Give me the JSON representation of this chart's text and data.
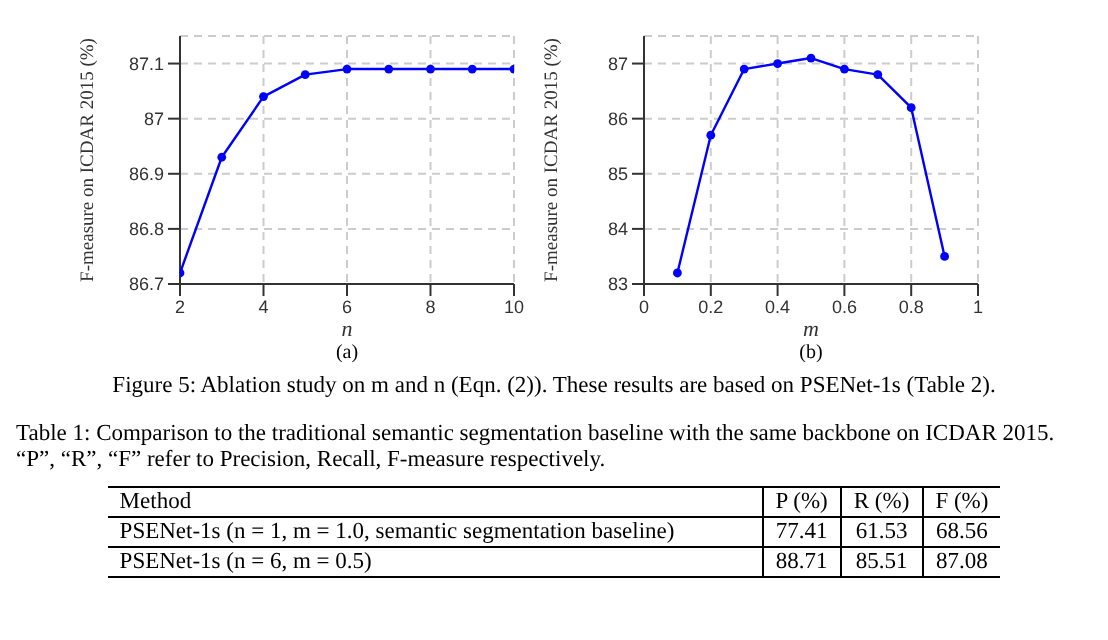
{
  "chart_data": [
    {
      "type": "line",
      "xlabel": "n",
      "ylabel": "F-measure on ICDAR 2015 (%)",
      "annotations": [
        "(a)"
      ],
      "x": [
        2,
        3,
        4,
        5,
        6,
        7,
        8,
        9,
        10
      ],
      "values": [
        86.72,
        86.93,
        87.04,
        87.08,
        87.09,
        87.09,
        87.09,
        87.09,
        87.09
      ],
      "color": "#0000ff",
      "xlim": [
        2,
        10
      ],
      "ylim": [
        86.7,
        87.15
      ],
      "xticks": [
        2,
        4,
        6,
        8,
        10
      ],
      "yticks": [
        86.7,
        86.8,
        86.9,
        87,
        87.1
      ],
      "grid": true,
      "marker": "circle"
    },
    {
      "type": "line",
      "xlabel": "m",
      "ylabel": "F-measure on ICDAR 2015 (%)",
      "annotations": [
        "(b)"
      ],
      "x": [
        0.1,
        0.2,
        0.3,
        0.4,
        0.5,
        0.6,
        0.7,
        0.8,
        0.9
      ],
      "values": [
        83.2,
        85.7,
        86.9,
        87.0,
        87.1,
        86.9,
        86.8,
        86.2,
        83.5
      ],
      "color": "#0000ff",
      "xlim": [
        0,
        1
      ],
      "ylim": [
        83,
        87.5
      ],
      "xticks": [
        0,
        0.2,
        0.4,
        0.6,
        0.8,
        1
      ],
      "yticks": [
        83,
        84,
        85,
        86,
        87
      ],
      "grid": true,
      "marker": "circle"
    },
    {
      "type": "other",
      "annotations": [
        "Figure 5: Ablation study on m and n (Eqn. (2)). These results are based on PSENet-1s (Table 2)."
      ],
      "title": "Table 1: Comparison to the traditional semantic segmentation baseline with the same backbone on ICDAR 2015. “P”, “R”, “F” refer to Precision, Recall, F-measure respectively.",
      "xlabel": "Method",
      "categories": [
        "PSENet-1s (n = 1, m = 1.0, semantic segmentation baseline)",
        "PSENet-1s (n = 6, m = 0.5)"
      ],
      "data_labels": true,
      "series": [
        {
          "name": "P (%)",
          "values": [
            77.41,
            88.71
          ]
        },
        {
          "name": "R (%)",
          "values": [
            61.53,
            85.51
          ]
        },
        {
          "name": "F (%)",
          "values": [
            68.56,
            87.08
          ]
        }
      ]
    }
  ]
}
